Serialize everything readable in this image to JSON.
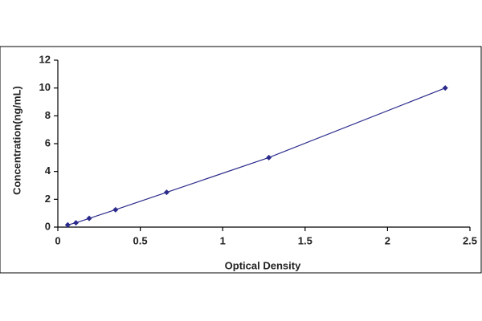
{
  "chart_data": {
    "type": "line",
    "x_label": "Optical Density",
    "y_label": "Concentration(ng/mL)",
    "x": [
      0.06,
      0.11,
      0.19,
      0.35,
      0.66,
      1.28,
      2.35
    ],
    "values": [
      0.156,
      0.312,
      0.625,
      1.25,
      2.5,
      5,
      10
    ],
    "color": "#2b2b8c",
    "xlim": [
      0,
      2.5
    ],
    "xticks": [
      0,
      0.5,
      1,
      1.5,
      2,
      2.5
    ],
    "ylim": [
      0,
      12
    ],
    "yticks": [
      0,
      2,
      4,
      6,
      8,
      10,
      12
    ],
    "grid": false
  }
}
